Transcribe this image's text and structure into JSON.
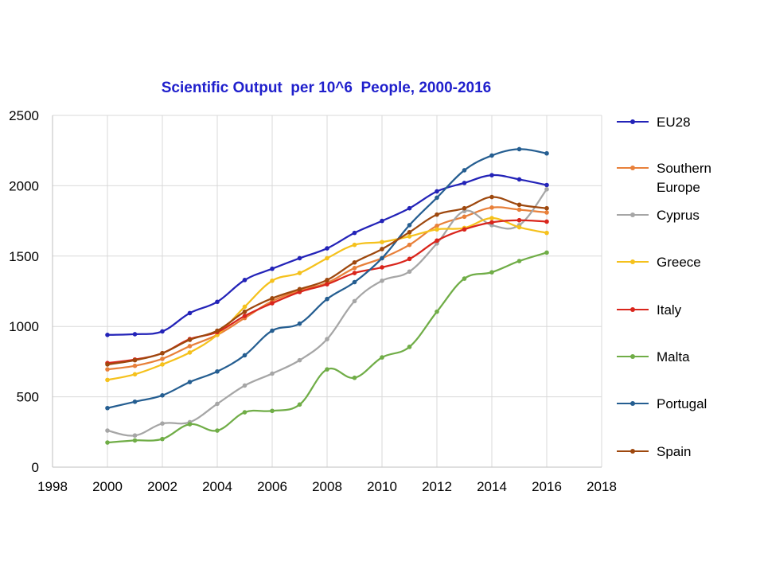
{
  "chart_data": {
    "type": "line",
    "title": "Scientific Output  per 10^6  People, 2000-2016",
    "xlabel": "",
    "ylabel": "",
    "xlim": [
      1998,
      2018
    ],
    "ylim": [
      0,
      2500
    ],
    "xticks": [
      1998,
      2000,
      2002,
      2004,
      2006,
      2008,
      2010,
      2012,
      2014,
      2016,
      2018
    ],
    "yticks": [
      0,
      500,
      1000,
      1500,
      2000,
      2500
    ],
    "grid": true,
    "legend_position": "right",
    "x": [
      2000,
      2001,
      2002,
      2003,
      2004,
      2005,
      2006,
      2007,
      2008,
      2009,
      2010,
      2011,
      2012,
      2013,
      2014,
      2015,
      2016
    ],
    "series": [
      {
        "name": "EU28",
        "color": "#2323b8",
        "values": [
          940,
          945,
          965,
          1095,
          1175,
          1330,
          1410,
          1485,
          1555,
          1665,
          1750,
          1840,
          1960,
          2020,
          2075,
          2045,
          2005
        ]
      },
      {
        "name": "Southern\nEurope",
        "color": "#e8803a",
        "values": [
          695,
          720,
          770,
          860,
          940,
          1060,
          1180,
          1255,
          1310,
          1415,
          1485,
          1580,
          1715,
          1780,
          1845,
          1830,
          1810
        ]
      },
      {
        "name": "Cyprus",
        "color": "#a6a6a6",
        "values": [
          260,
          225,
          310,
          320,
          450,
          580,
          665,
          760,
          910,
          1180,
          1325,
          1390,
          1590,
          1820,
          1720,
          1720,
          1975
        ]
      },
      {
        "name": "Greece",
        "color": "#f5c11c",
        "values": [
          620,
          660,
          730,
          815,
          940,
          1140,
          1325,
          1380,
          1485,
          1580,
          1600,
          1640,
          1690,
          1700,
          1770,
          1705,
          1665
        ]
      },
      {
        "name": "Italy",
        "color": "#d9251c",
        "values": [
          740,
          765,
          810,
          910,
          960,
          1075,
          1165,
          1245,
          1300,
          1380,
          1420,
          1480,
          1610,
          1690,
          1740,
          1755,
          1745
        ]
      },
      {
        "name": "Malta",
        "color": "#70ad47",
        "values": [
          175,
          190,
          200,
          305,
          260,
          390,
          400,
          445,
          695,
          635,
          780,
          855,
          1105,
          1340,
          1385,
          1465,
          1525
        ]
      },
      {
        "name": "Portugal",
        "color": "#255e91",
        "values": [
          420,
          465,
          510,
          605,
          680,
          795,
          970,
          1020,
          1195,
          1315,
          1485,
          1720,
          1915,
          2110,
          2215,
          2260,
          2230
        ]
      },
      {
        "name": "Spain",
        "color": "#9e480e",
        "values": [
          730,
          760,
          810,
          905,
          970,
          1105,
          1200,
          1265,
          1330,
          1455,
          1550,
          1670,
          1795,
          1840,
          1920,
          1865,
          1840
        ]
      }
    ]
  }
}
